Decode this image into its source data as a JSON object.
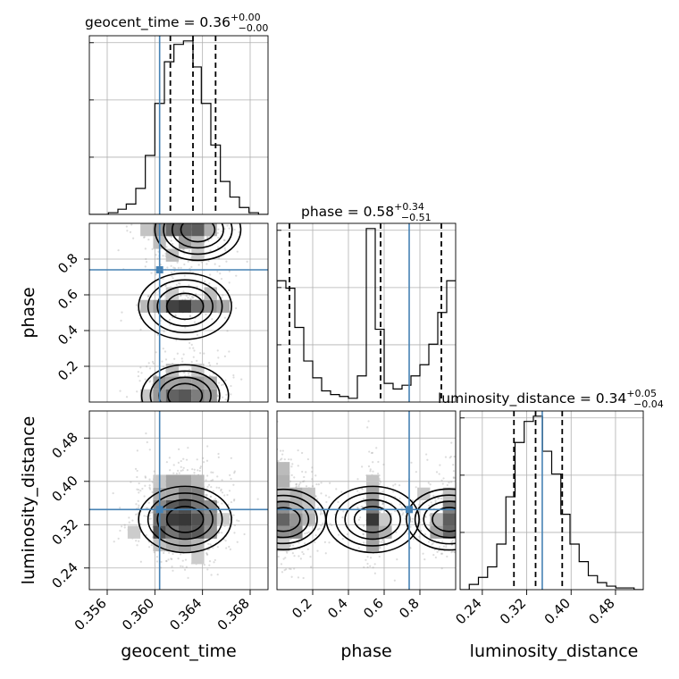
{
  "chart_data": {
    "type": "corner",
    "parameters": [
      "geocent_time",
      "phase",
      "luminosity_distance"
    ],
    "titles": [
      {
        "param": "geocent_time",
        "text": "geocent_time = 0.36",
        "plus": "+0.00",
        "minus": "−0.00"
      },
      {
        "param": "phase",
        "text": "phase = 0.58",
        "plus": "+0.34",
        "minus": "−0.51"
      },
      {
        "param": "luminosity_distance",
        "text": "luminosity_distance = 0.34",
        "plus": "+0.05",
        "minus": "−0.04"
      }
    ],
    "axis_labels": {
      "geocent_time": "geocent_time",
      "phase": "phase",
      "luminosity_distance": "luminosity_distance"
    },
    "ranges": {
      "geocent_time": [
        0.3545,
        0.3695
      ],
      "phase": [
        0.0,
        1.0
      ],
      "luminosity_distance": [
        0.2,
        0.53
      ]
    },
    "ticks": {
      "geocent_time": [
        "0.356",
        "0.360",
        "0.364",
        "0.368"
      ],
      "phase": [
        "0.2",
        "0.4",
        "0.6",
        "0.8"
      ],
      "luminosity_distance": [
        "0.24",
        "0.32",
        "0.40",
        "0.48"
      ]
    },
    "truths": {
      "geocent_time": 0.3604,
      "phase": 0.74,
      "luminosity_distance": 0.348
    },
    "quantiles": {
      "geocent_time": [
        0.3613,
        0.3632,
        0.3651
      ],
      "phase": [
        0.07,
        0.58,
        0.92
      ],
      "luminosity_distance": [
        0.297,
        0.336,
        0.384
      ]
    },
    "histograms": {
      "geocent_time": {
        "bin_edges": [
          0.3545,
          0.3553,
          0.3561,
          0.3569,
          0.3576,
          0.3584,
          0.3592,
          0.36,
          0.3608,
          0.3616,
          0.3624,
          0.3632,
          0.3639,
          0.3647,
          0.3655,
          0.3663,
          0.3671,
          0.3679,
          0.3687,
          0.3695
        ],
        "counts": [
          0.0,
          0.0,
          0.01,
          0.03,
          0.06,
          0.15,
          0.34,
          0.64,
          0.88,
          0.98,
          1.0,
          0.85,
          0.64,
          0.4,
          0.19,
          0.1,
          0.04,
          0.01,
          0.0
        ]
      },
      "phase": {
        "bin_edges": [
          0.0,
          0.05,
          0.1,
          0.15,
          0.2,
          0.25,
          0.3,
          0.35,
          0.4,
          0.45,
          0.5,
          0.55,
          0.6,
          0.65,
          0.7,
          0.75,
          0.8,
          0.85,
          0.9,
          0.95,
          1.0
        ],
        "counts": [
          0.65,
          0.61,
          0.4,
          0.22,
          0.13,
          0.06,
          0.04,
          0.03,
          0.02,
          0.14,
          0.93,
          0.39,
          0.1,
          0.07,
          0.09,
          0.14,
          0.2,
          0.31,
          0.48,
          0.65
        ]
      },
      "luminosity_distance": {
        "bin_edges": [
          0.2,
          0.2165,
          0.233,
          0.2495,
          0.266,
          0.2825,
          0.299,
          0.3155,
          0.332,
          0.3485,
          0.365,
          0.3815,
          0.398,
          0.4145,
          0.431,
          0.4475,
          0.464,
          0.4805,
          0.497,
          0.5135,
          0.53
        ],
        "counts": [
          0.0,
          0.03,
          0.07,
          0.13,
          0.26,
          0.53,
          0.84,
          0.96,
          0.99,
          0.79,
          0.66,
          0.43,
          0.26,
          0.16,
          0.08,
          0.04,
          0.02,
          0.01,
          0.01,
          0.0
        ]
      }
    },
    "grid": true,
    "density_colormap": "greys",
    "contour_levels": 4
  }
}
